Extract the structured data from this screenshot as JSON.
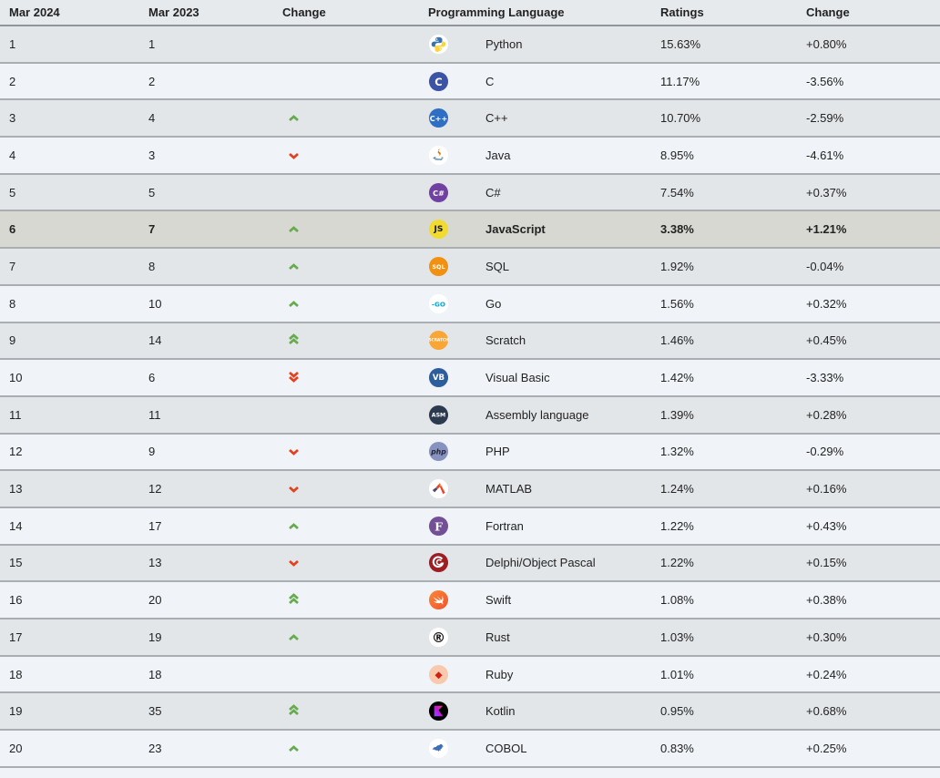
{
  "colors": {
    "trend_up": "#67ab4f",
    "trend_down": "#e2431e",
    "highlight_row_bg": "#d8d8d2",
    "row_gray": "#e3e6e9",
    "row_blue": "#f0f4f8",
    "header_bg": "#e7eaed",
    "border": "#a9aeb3"
  },
  "chart_data": {
    "type": "table",
    "columns": [
      "Mar 2024",
      "Mar 2023",
      "Change",
      "Programming Language",
      "Ratings",
      "Change"
    ],
    "rows": [
      {
        "mar_2024": "1",
        "mar_2023": "1",
        "trend": "none",
        "language": "Python",
        "icon": {
          "name": "python-icon",
          "shape": "python"
        },
        "rating": "15.63%",
        "change": "+0.80%",
        "highlighted": false
      },
      {
        "mar_2024": "2",
        "mar_2023": "2",
        "trend": "none",
        "language": "C",
        "icon": {
          "name": "c-icon",
          "bg": "#3a53a4",
          "fg": "#ffffff",
          "text": "C",
          "size": 12
        },
        "rating": "11.17%",
        "change": "-3.56%",
        "highlighted": false
      },
      {
        "mar_2024": "3",
        "mar_2023": "4",
        "trend": "up",
        "language": "C++",
        "icon": {
          "name": "cpp-icon",
          "bg": "#2f6fc3",
          "fg": "#ffffff",
          "text": "C++",
          "size": 8.5
        },
        "rating": "10.70%",
        "change": "-2.59%",
        "highlighted": false
      },
      {
        "mar_2024": "4",
        "mar_2023": "3",
        "trend": "down",
        "language": "Java",
        "icon": {
          "name": "java-icon",
          "shape": "java"
        },
        "rating": "8.95%",
        "change": "-4.61%",
        "highlighted": false
      },
      {
        "mar_2024": "5",
        "mar_2023": "5",
        "trend": "none",
        "language": "C#",
        "icon": {
          "name": "csharp-icon",
          "bg": "#7141a1",
          "fg": "#ffffff",
          "text": "C#",
          "size": 8.5
        },
        "rating": "7.54%",
        "change": "+0.37%",
        "highlighted": false
      },
      {
        "mar_2024": "6",
        "mar_2023": "7",
        "trend": "up",
        "language": "JavaScript",
        "icon": {
          "name": "javascript-icon",
          "bg": "#f0db2e",
          "fg": "#1a1a1a",
          "text": "JS",
          "size": 9.5
        },
        "rating": "3.38%",
        "change": "+1.21%",
        "highlighted": true
      },
      {
        "mar_2024": "7",
        "mar_2023": "8",
        "trend": "up",
        "language": "SQL",
        "icon": {
          "name": "sql-icon",
          "bg": "#f29111",
          "fg": "#ffffff",
          "text": "SQL",
          "size": 6.8
        },
        "rating": "1.92%",
        "change": "-0.04%",
        "highlighted": false
      },
      {
        "mar_2024": "8",
        "mar_2023": "10",
        "trend": "up",
        "language": "Go",
        "icon": {
          "name": "go-icon",
          "bg": "#ffffff",
          "fg": "#00acd7",
          "text": "-GO",
          "size": 7.5
        },
        "rating": "1.56%",
        "change": "+0.32%",
        "highlighted": false
      },
      {
        "mar_2024": "9",
        "mar_2023": "14",
        "trend": "up2",
        "language": "Scratch",
        "icon": {
          "name": "scratch-icon",
          "bg": "#f9a636",
          "fg": "#ffffff",
          "text": "SCRATCH",
          "size": 4.5
        },
        "rating": "1.46%",
        "change": "+0.45%",
        "highlighted": false
      },
      {
        "mar_2024": "10",
        "mar_2023": "6",
        "trend": "down2",
        "language": "Visual Basic",
        "icon": {
          "name": "visual-basic-icon",
          "bg": "#2c5e9e",
          "fg": "#ffffff",
          "text": "VB",
          "size": 9
        },
        "rating": "1.42%",
        "change": "-3.33%",
        "highlighted": false
      },
      {
        "mar_2024": "11",
        "mar_2023": "11",
        "trend": "none",
        "language": "Assembly language",
        "icon": {
          "name": "assembly-icon",
          "bg": "#2c3a4f",
          "fg": "#ffffff",
          "text": "ASM",
          "size": 6.5
        },
        "rating": "1.39%",
        "change": "+0.28%",
        "highlighted": false
      },
      {
        "mar_2024": "12",
        "mar_2023": "9",
        "trend": "down",
        "language": "PHP",
        "icon": {
          "name": "php-icon",
          "bg": "#8892bf",
          "fg": "#23263b",
          "text": "php",
          "size": 8,
          "italic": true
        },
        "rating": "1.32%",
        "change": "-0.29%",
        "highlighted": false
      },
      {
        "mar_2024": "13",
        "mar_2023": "12",
        "trend": "down",
        "language": "MATLAB",
        "icon": {
          "name": "matlab-icon",
          "shape": "matlab"
        },
        "rating": "1.24%",
        "change": "+0.16%",
        "highlighted": false
      },
      {
        "mar_2024": "14",
        "mar_2023": "17",
        "trend": "up",
        "language": "Fortran",
        "icon": {
          "name": "fortran-icon",
          "bg": "#734f96",
          "fg": "#ffffff",
          "text": "F",
          "size": 13,
          "serif": true
        },
        "rating": "1.22%",
        "change": "+0.43%",
        "highlighted": false
      },
      {
        "mar_2024": "15",
        "mar_2023": "13",
        "trend": "down",
        "language": "Delphi/Object Pascal",
        "icon": {
          "name": "delphi-icon",
          "shape": "delphi"
        },
        "rating": "1.22%",
        "change": "+0.15%",
        "highlighted": false
      },
      {
        "mar_2024": "16",
        "mar_2023": "20",
        "trend": "up2",
        "language": "Swift",
        "icon": {
          "name": "swift-icon",
          "shape": "swift"
        },
        "rating": "1.08%",
        "change": "+0.38%",
        "highlighted": false
      },
      {
        "mar_2024": "17",
        "mar_2023": "19",
        "trend": "up",
        "language": "Rust",
        "icon": {
          "name": "rust-icon",
          "bg": "#ffffff",
          "fg": "#111111",
          "text": "®",
          "size": 16
        },
        "rating": "1.03%",
        "change": "+0.30%",
        "highlighted": false
      },
      {
        "mar_2024": "18",
        "mar_2023": "18",
        "trend": "none",
        "language": "Ruby",
        "icon": {
          "name": "ruby-icon",
          "bg": "#f8c9ac",
          "fg": "#d01f13",
          "text": "◆",
          "size": 11
        },
        "rating": "1.01%",
        "change": "+0.24%",
        "highlighted": false
      },
      {
        "mar_2024": "19",
        "mar_2023": "35",
        "trend": "up2",
        "language": "Kotlin",
        "icon": {
          "name": "kotlin-icon",
          "shape": "kotlin"
        },
        "rating": "0.95%",
        "change": "+0.68%",
        "highlighted": false
      },
      {
        "mar_2024": "20",
        "mar_2023": "23",
        "trend": "up",
        "language": "COBOL",
        "icon": {
          "name": "cobol-icon",
          "shape": "cobol"
        },
        "rating": "0.83%",
        "change": "+0.25%",
        "highlighted": false
      }
    ]
  }
}
